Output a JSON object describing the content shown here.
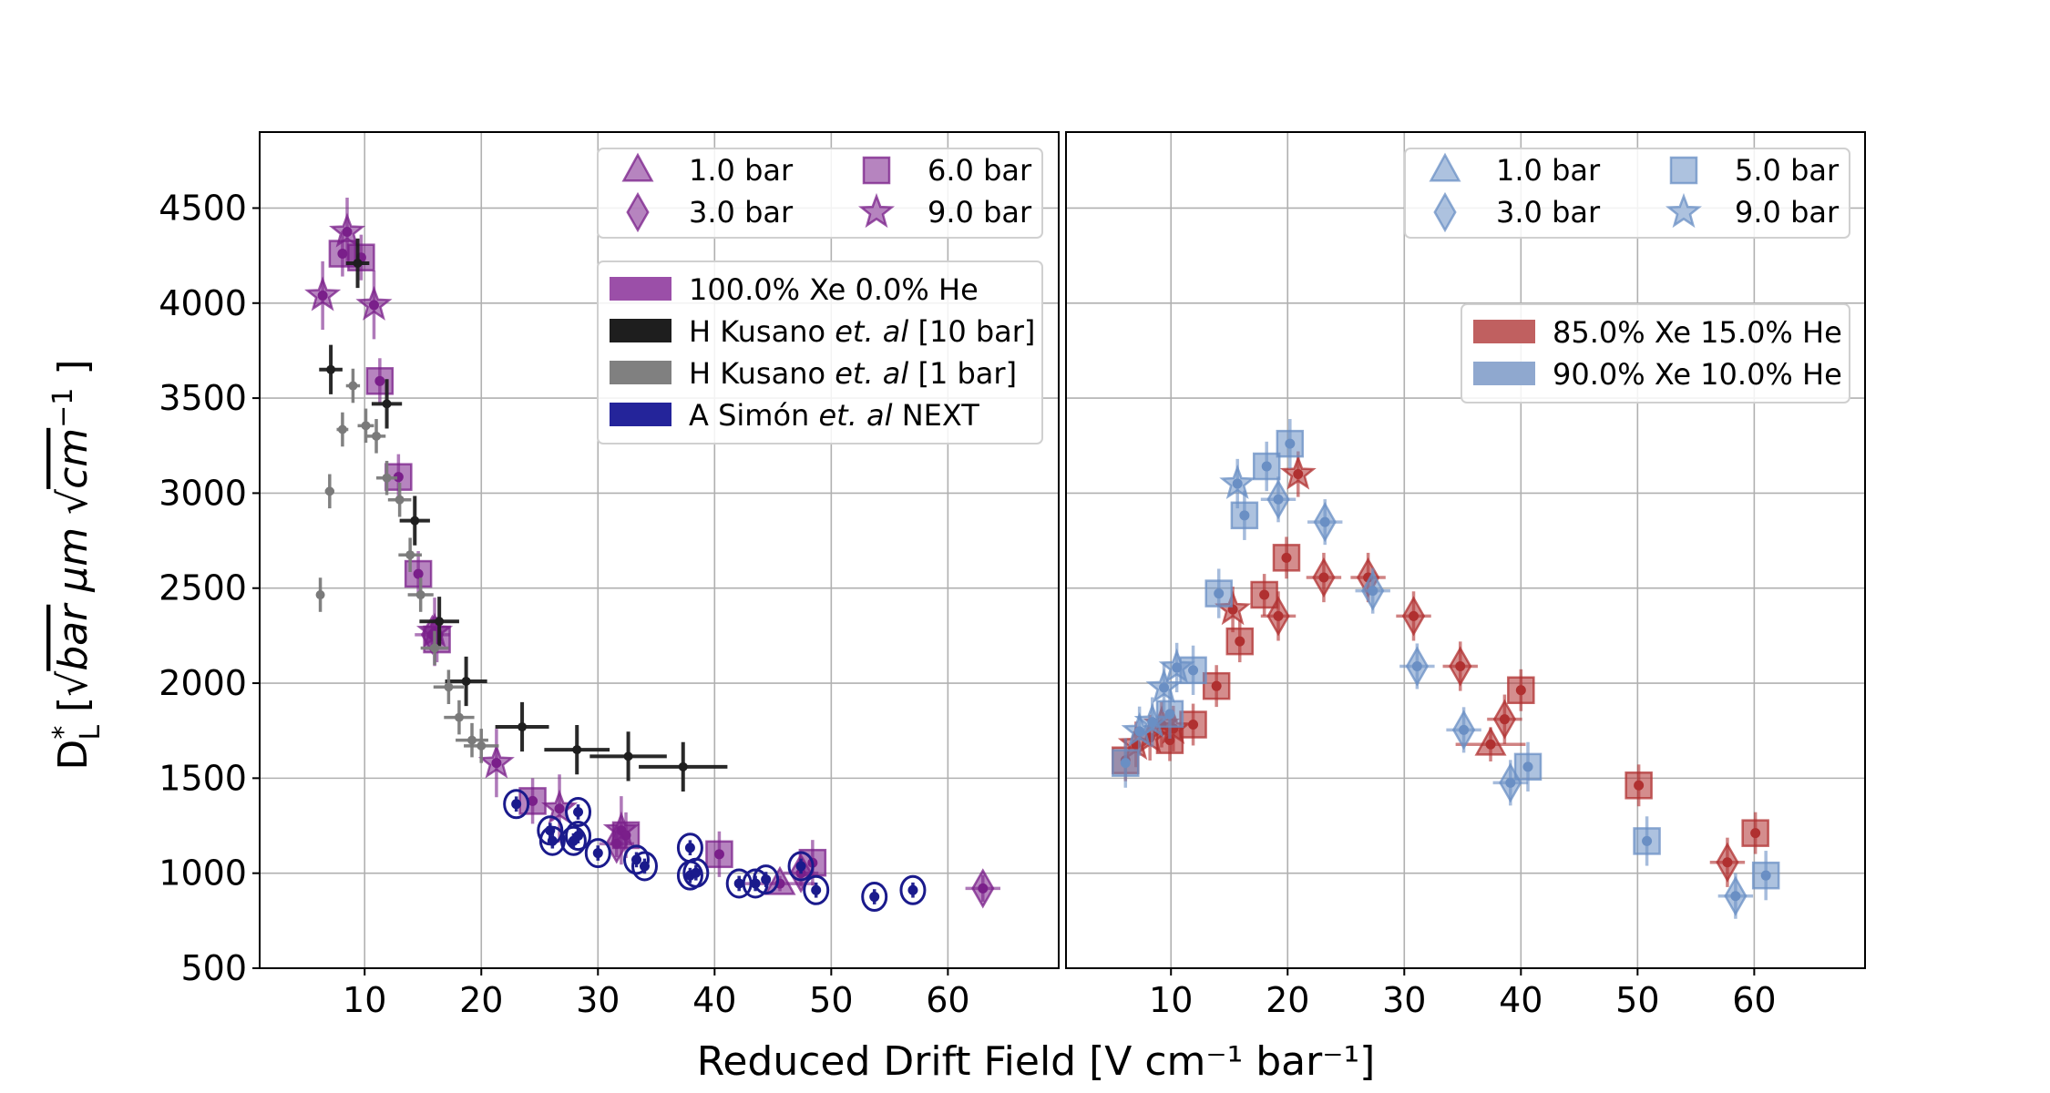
{
  "chart_data": [
    {
      "type": "scatter",
      "panel": "left",
      "xlim": [
        1,
        69.5
      ],
      "ylim": [
        500,
        4900
      ],
      "grid": true,
      "xticks": [
        10,
        20,
        30,
        40,
        50,
        60
      ],
      "yticks": [
        500,
        1000,
        1500,
        2000,
        2500,
        3000,
        3500,
        4000,
        4500
      ],
      "legend_pressure": {
        "placement": "top-right",
        "items": [
          {
            "marker": "triangle",
            "label": "1.0 bar"
          },
          {
            "marker": "square",
            "label": "6.0 bar"
          },
          {
            "marker": "diamond",
            "label": "3.0 bar"
          },
          {
            "marker": "star",
            "label": "9.0 bar"
          }
        ]
      },
      "legend_source": {
        "placement": "upper-right",
        "items": [
          {
            "color": "#9b4fa8",
            "pre": "100.0% Xe 0.0% He",
            "em": "",
            "post": ""
          },
          {
            "color": "#1e1e1e",
            "pre": "H Kusano ",
            "em": "et. al",
            "post": " [10 bar]"
          },
          {
            "color": "#808080",
            "pre": "H Kusano ",
            "em": "et. al",
            "post": " [1 bar]"
          },
          {
            "color": "#24249a",
            "pre": "A Simón ",
            "em": "et. al",
            "post": " NEXT"
          }
        ]
      },
      "series": [
        {
          "name": "100.0% Xe 0.0% He",
          "pressure": "9.0 bar",
          "marker": "star",
          "color": "#7a1f8a",
          "yerr": 180,
          "points": [
            [
              6.4,
              4040
            ],
            [
              8.5,
              4375
            ],
            [
              10.8,
              3990
            ],
            [
              16.0,
              2270
            ],
            [
              21.3,
              1580
            ],
            [
              26.7,
              1340
            ],
            [
              32.0,
              1225
            ]
          ]
        },
        {
          "name": "100.0% Xe 0.0% He",
          "pressure": "6.0 bar",
          "marker": "square",
          "color": "#7a1f8a",
          "yerr": 120,
          "points": [
            [
              8.1,
              4260
            ],
            [
              9.7,
              4240
            ],
            [
              11.3,
              3590
            ],
            [
              12.9,
              3085
            ],
            [
              14.6,
              2575
            ],
            [
              16.2,
              2230
            ],
            [
              24.4,
              1380
            ],
            [
              32.4,
              1200
            ],
            [
              40.4,
              1100
            ],
            [
              48.4,
              1055
            ]
          ]
        },
        {
          "name": "100.0% Xe 0.0% He",
          "pressure": "3.0 bar",
          "marker": "diamond",
          "color": "#7a1f8a",
          "yerr": 70,
          "xerr": 1.5,
          "points": [
            [
              15.8,
              2255
            ],
            [
              31.6,
              1155
            ],
            [
              47.4,
              1000
            ],
            [
              63.0,
              920
            ]
          ]
        },
        {
          "name": "100.0% Xe 0.0% He",
          "pressure": "1.0 bar",
          "marker": "triangle",
          "color": "#7a1f8a",
          "yerr": 40,
          "xerr": 3,
          "points": [
            [
              45.6,
              945
            ]
          ]
        },
        {
          "name": "H Kusano et. al [10 bar]",
          "marker": "dot",
          "color": "#1e1e1e",
          "yerr": 130,
          "points": [
            [
              7.1,
              3650,
              1
            ],
            [
              9.4,
              4210,
              1
            ],
            [
              11.9,
              3470,
              1.3
            ],
            [
              14.3,
              2855,
              1.3
            ],
            [
              16.4,
              2325,
              1.7
            ],
            [
              18.7,
              2010,
              1.8
            ],
            [
              23.5,
              1770,
              2.3
            ],
            [
              28.2,
              1650,
              2.8
            ],
            [
              32.6,
              1615,
              3.3
            ],
            [
              37.3,
              1560,
              3.8
            ]
          ]
        },
        {
          "name": "H Kusano et. al [1 bar]",
          "marker": "dot",
          "color": "#7a7a7a",
          "yerr": 90,
          "points": [
            [
              6.2,
              2465,
              0.3
            ],
            [
              7.0,
              3010,
              0.4
            ],
            [
              8.1,
              3335,
              0.5
            ],
            [
              9.0,
              3565,
              0.6
            ],
            [
              10.1,
              3355,
              0.7
            ],
            [
              11.0,
              3300,
              0.8
            ],
            [
              11.9,
              3080,
              0.9
            ],
            [
              13.0,
              2965,
              1
            ],
            [
              13.9,
              2675,
              1
            ],
            [
              14.8,
              2465,
              1.1
            ],
            [
              16.0,
              2185,
              1.2
            ],
            [
              17.2,
              1980,
              1.3
            ],
            [
              18.1,
              1820,
              1.3
            ],
            [
              19.2,
              1700,
              1.4
            ],
            [
              20.0,
              1670,
              1.5
            ]
          ]
        },
        {
          "name": "A Simón et. al NEXT",
          "marker": "open-circle",
          "color": "#1a1a8c",
          "yerr": 40,
          "points": [
            [
              23.0,
              1364
            ],
            [
              25.9,
              1225
            ],
            [
              26.1,
              1170
            ],
            [
              28.3,
              1322
            ],
            [
              28.3,
              1197
            ],
            [
              27.9,
              1170
            ],
            [
              30.0,
              1106
            ],
            [
              33.3,
              1071
            ],
            [
              34.0,
              1037
            ],
            [
              37.9,
              1134
            ],
            [
              37.9,
              988
            ],
            [
              38.4,
              1002
            ],
            [
              42.1,
              946
            ],
            [
              43.5,
              946
            ],
            [
              44.4,
              967
            ],
            [
              47.4,
              1037
            ],
            [
              48.7,
              911
            ],
            [
              53.7,
              876
            ],
            [
              57.0,
              911
            ]
          ]
        }
      ]
    },
    {
      "type": "scatter",
      "panel": "right",
      "xlim": [
        1,
        69.5
      ],
      "ylim": [
        500,
        4900
      ],
      "grid": true,
      "xticks": [
        10,
        20,
        30,
        40,
        50,
        60
      ],
      "yticks": [
        500,
        1000,
        1500,
        2000,
        2500,
        3000,
        3500,
        4000,
        4500
      ],
      "legend_pressure": {
        "placement": "top-right",
        "items": [
          {
            "marker": "triangle",
            "label": "1.0 bar"
          },
          {
            "marker": "square",
            "label": "5.0 bar"
          },
          {
            "marker": "diamond",
            "label": "3.0 bar"
          },
          {
            "marker": "star",
            "label": "9.0 bar"
          }
        ]
      },
      "legend_source": {
        "placement": "upper-right",
        "items": [
          {
            "color": "#c06060",
            "pre": "85.0% Xe 15.0% He",
            "em": "",
            "post": ""
          },
          {
            "color": "#8fa8cf",
            "pre": "90.0% Xe 10.0% He",
            "em": "",
            "post": ""
          }
        ]
      },
      "series": [
        {
          "name": "85.0% Xe 15.0% He",
          "pressure": "5.0 bar",
          "marker": "square",
          "color": "#b03030",
          "yerr": 110,
          "points": [
            [
              6.1,
              1594
            ],
            [
              9.9,
              1700
            ],
            [
              11.9,
              1782
            ],
            [
              13.9,
              1985
            ],
            [
              15.9,
              2220
            ],
            [
              18.0,
              2465
            ],
            [
              19.9,
              2660
            ],
            [
              40.0,
              1963
            ],
            [
              50.1,
              1462
            ],
            [
              60.1,
              1211
            ]
          ]
        },
        {
          "name": "85.0% Xe 15.0% He",
          "pressure": "9.0 bar",
          "marker": "star",
          "color": "#b03030",
          "yerr": 120,
          "points": [
            [
              7.0,
              1678
            ],
            [
              8.2,
              1713
            ],
            [
              9.2,
              1782
            ],
            [
              10.2,
              1761
            ],
            [
              15.3,
              2388
            ],
            [
              20.9,
              3100
            ]
          ]
        },
        {
          "name": "85.0% Xe 15.0% He",
          "pressure": "3.0 bar",
          "marker": "diamond",
          "color": "#b03030",
          "yerr": 130,
          "xerr": 1.5,
          "points": [
            [
              19.2,
              2353
            ],
            [
              23.1,
              2556
            ],
            [
              26.9,
              2556
            ],
            [
              30.8,
              2353
            ],
            [
              34.8,
              2089
            ],
            [
              38.6,
              1810
            ],
            [
              57.7,
              1057
            ]
          ]
        },
        {
          "name": "85.0% Xe 15.0% He",
          "pressure": "1.0 bar",
          "marker": "triangle",
          "color": "#b03030",
          "yerr": 90,
          "xerr": 3,
          "points": [
            [
              37.4,
              1678
            ]
          ]
        },
        {
          "name": "90.0% Xe 10.0% He",
          "pressure": "5.0 bar",
          "marker": "square",
          "color": "#6a8fc4",
          "yerr": 130,
          "points": [
            [
              6.1,
              1580
            ],
            [
              9.9,
              1838
            ],
            [
              11.9,
              2068
            ],
            [
              14.1,
              2472
            ],
            [
              16.3,
              2883
            ],
            [
              18.2,
              3141
            ],
            [
              20.2,
              3260
            ],
            [
              40.6,
              1560
            ],
            [
              50.8,
              1169
            ],
            [
              61.0,
              988
            ]
          ]
        },
        {
          "name": "90.0% Xe 10.0% He",
          "pressure": "9.0 bar",
          "marker": "star",
          "color": "#6a8fc4",
          "yerr": 130,
          "points": [
            [
              7.3,
              1747
            ],
            [
              8.4,
              1796
            ],
            [
              9.4,
              1977
            ],
            [
              10.5,
              2082
            ],
            [
              15.7,
              3050
            ]
          ]
        },
        {
          "name": "90.0% Xe 10.0% He",
          "pressure": "3.0 bar",
          "marker": "diamond",
          "color": "#6a8fc4",
          "yerr": 120,
          "xerr": 1.5,
          "points": [
            [
              19.2,
              2967
            ],
            [
              23.2,
              2848
            ],
            [
              27.3,
              2486
            ],
            [
              31.1,
              2089
            ],
            [
              35.1,
              1754
            ],
            [
              39.1,
              1476
            ],
            [
              58.4,
              880
            ]
          ]
        }
      ]
    }
  ],
  "xlabel": "Reduced Drift Field [V cm⁻¹ bar⁻¹]",
  "ylabel": {
    "symbol": "D",
    "sup": "*",
    "sub": "L",
    "open": " [",
    "root1": "√",
    "var1": "bar",
    "mid": " μm ",
    "root2": "√",
    "var2": "cm",
    "exp": "−1",
    "close": " ]"
  }
}
